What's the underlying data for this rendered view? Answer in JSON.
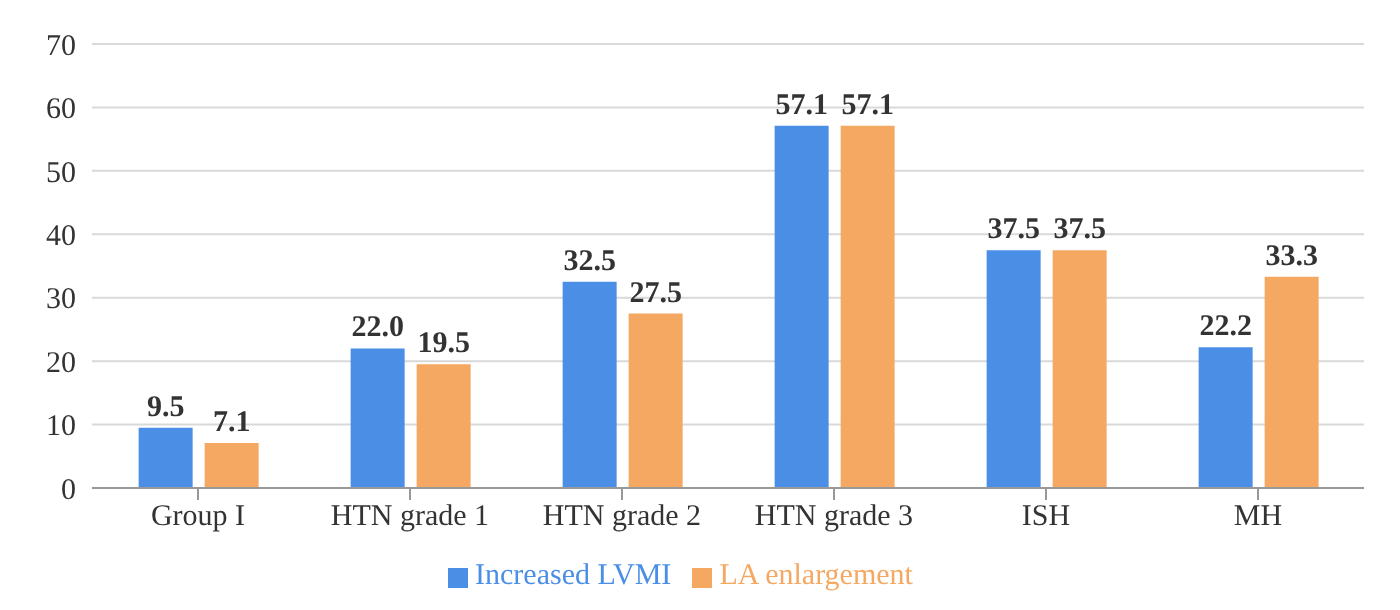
{
  "chart_data": {
    "type": "bar",
    "categories": [
      "Group I",
      "HTN grade 1",
      "HTN grade 2",
      "HTN grade 3",
      "ISH",
      "MH"
    ],
    "series": [
      {
        "name": "Increased LVMI",
        "color": "#4a8ee6",
        "values": [
          9.5,
          22.0,
          32.5,
          57.1,
          37.5,
          22.2
        ],
        "value_labels": [
          "9.5",
          "22.0",
          "32.5",
          "57.1",
          "37.5",
          "22.2"
        ]
      },
      {
        "name": "LA enlargement",
        "color": "#f4a862",
        "values": [
          7.1,
          19.5,
          27.5,
          57.1,
          37.5,
          33.3
        ],
        "value_labels": [
          "7.1",
          "19.5",
          "27.5",
          "57.1",
          "37.5",
          "33.3"
        ]
      }
    ],
    "ylim": [
      0,
      70
    ],
    "yticks": [
      0,
      10,
      20,
      30,
      40,
      50,
      60,
      70
    ],
    "grid": "y",
    "legend": "bottom"
  }
}
